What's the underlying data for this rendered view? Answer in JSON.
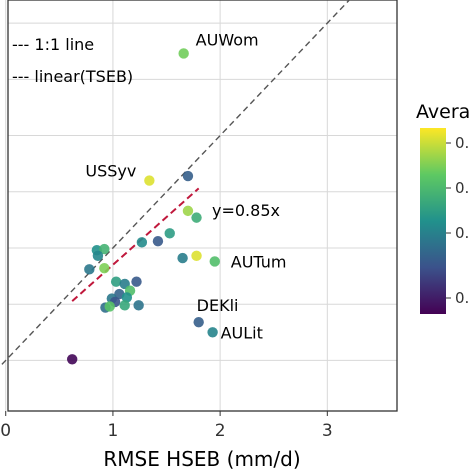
{
  "chart_data": {
    "type": "scatter",
    "xlabel": "RMSE HSEB (mm/d)",
    "ylabel": "",
    "xlim": [
      -0.1,
      3.65
    ],
    "ylim": [
      -0.45,
      3.25
    ],
    "x_ticks": [
      "0",
      "1",
      "2",
      "3"
    ],
    "y_gridlines": [
      0,
      0.5,
      1,
      1.5,
      2,
      2.5,
      3
    ],
    "grid": true,
    "legend": {
      "position": "top-left",
      "entries": [
        {
          "text": "--- 1:1 line",
          "color": "#555555"
        },
        {
          "text": "--- linear(TSEB)",
          "color": "#c0183c"
        }
      ]
    },
    "reference_line": {
      "slope": 1.0,
      "color": "#555555",
      "style": "dashed"
    },
    "fit_line": {
      "slope": 0.85,
      "x_range": [
        0.62,
        1.8
      ],
      "color": "#c0183c",
      "style": "dashed"
    },
    "fit_annotation": {
      "text": "y=0.85x",
      "color": "#c0183c"
    },
    "colorbar": {
      "title": "Avera",
      "tick_labels": [
        "0.",
        "0.",
        "0.",
        "0."
      ],
      "cmap": "viridis"
    },
    "points": [
      {
        "x": 1.66,
        "y": 2.73,
        "c": 0.78,
        "label": "AUWom"
      },
      {
        "x": 1.34,
        "y": 1.6,
        "c": 0.95,
        "label": "USSyv"
      },
      {
        "x": 1.7,
        "y": 1.64,
        "c": 0.3
      },
      {
        "x": 1.7,
        "y": 1.33,
        "c": 0.85
      },
      {
        "x": 1.78,
        "y": 1.27,
        "c": 0.62
      },
      {
        "x": 1.53,
        "y": 1.13,
        "c": 0.55
      },
      {
        "x": 1.42,
        "y": 1.06,
        "c": 0.28
      },
      {
        "x": 1.27,
        "y": 1.05,
        "c": 0.48
      },
      {
        "x": 1.65,
        "y": 0.91,
        "c": 0.42
      },
      {
        "x": 1.78,
        "y": 0.93,
        "c": 0.95
      },
      {
        "x": 1.95,
        "y": 0.88,
        "c": 0.7,
        "label": "AUTum"
      },
      {
        "x": 0.85,
        "y": 0.98,
        "c": 0.5
      },
      {
        "x": 0.92,
        "y": 0.99,
        "c": 0.65
      },
      {
        "x": 0.86,
        "y": 0.93,
        "c": 0.46
      },
      {
        "x": 0.78,
        "y": 0.81,
        "c": 0.4
      },
      {
        "x": 0.92,
        "y": 0.82,
        "c": 0.8
      },
      {
        "x": 1.03,
        "y": 0.7,
        "c": 0.56
      },
      {
        "x": 1.11,
        "y": 0.68,
        "c": 0.42
      },
      {
        "x": 1.22,
        "y": 0.7,
        "c": 0.28
      },
      {
        "x": 1.16,
        "y": 0.62,
        "c": 0.7
      },
      {
        "x": 1.06,
        "y": 0.59,
        "c": 0.32
      },
      {
        "x": 1.13,
        "y": 0.56,
        "c": 0.5
      },
      {
        "x": 0.99,
        "y": 0.55,
        "c": 0.4
      },
      {
        "x": 1.02,
        "y": 0.52,
        "c": 0.26
      },
      {
        "x": 1.11,
        "y": 0.49,
        "c": 0.6
      },
      {
        "x": 0.93,
        "y": 0.47,
        "c": 0.36
      },
      {
        "x": 0.97,
        "y": 0.48,
        "c": 0.72
      },
      {
        "x": 1.24,
        "y": 0.49,
        "c": 0.38
      },
      {
        "x": 1.8,
        "y": 0.34,
        "c": 0.3,
        "label": "DEKli"
      },
      {
        "x": 1.93,
        "y": 0.25,
        "c": 0.45,
        "label": "AULit"
      },
      {
        "x": 0.62,
        "y": 0.01,
        "c": 0.02
      }
    ]
  }
}
